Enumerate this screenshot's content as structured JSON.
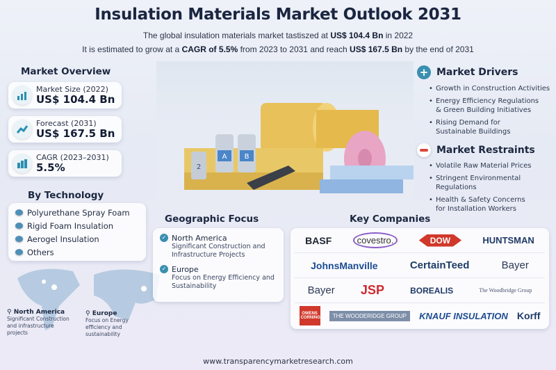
{
  "header": {
    "title": "Insulation Materials Market Outlook 2031",
    "line1_pre": "The global insulation materials market tastiszed at ",
    "line1_bold": "US$ 104.4 Bn",
    "line1_post": " in 2022",
    "line2_pre": "It is estimated to grow at a ",
    "line2_bold1": "CAGR of 5.5%",
    "line2_mid": " from 2023 to 2031 and reach ",
    "line2_bold2": "US$ 167.5 Bn",
    "line2_post": " by the end of 2031"
  },
  "overview": {
    "heading": "Market Overview",
    "cards": [
      {
        "label": "Market Size (2022)",
        "value": "US$ 104.4 Bn",
        "icon": "bar-chart-up-icon"
      },
      {
        "label": "Forecast (2031)",
        "value": "US$ 167.5 Bn",
        "icon": "forecast-icon"
      },
      {
        "label": "CAGR (2023–2031)",
        "value": "5.5%",
        "icon": "growth-chart-icon"
      }
    ]
  },
  "technology": {
    "heading": "By Technology",
    "items": [
      "Polyurethane Spray Foam",
      "Rigid Foam Insulation",
      "Aerogel Insulation",
      "Others"
    ]
  },
  "map": {
    "labels": [
      {
        "region": "North America",
        "desc": "Significant Construction and infrastructure projects"
      },
      {
        "region": "Europe",
        "desc": "Focus on Energy efficiency and sustainability"
      }
    ]
  },
  "drivers": {
    "heading": "Market Drivers",
    "items": [
      "Growth in Construction Activities",
      "Energy Efficiency Regulations & Green Building Initiatives",
      "Rising Demand for Sustainable Buildings"
    ]
  },
  "restraints": {
    "heading": "Market Restraints",
    "items": [
      "Volatile Raw Material Prices",
      "Stringent Environmental Regulations",
      "Health & Safety Concerns for Installation Workers"
    ]
  },
  "geo": {
    "heading": "Geographic Focus",
    "items": [
      {
        "region": "North America",
        "desc": "Significant Construction and Infrastructure Projects"
      },
      {
        "region": "Europe",
        "desc": "Focus on Energy Efficiency and Sustainability"
      }
    ]
  },
  "companies": {
    "heading": "Key Companies",
    "rows": [
      [
        "BASF",
        "covestro.",
        "DOW",
        "HUNTSMAN"
      ],
      [
        "JohnsManville",
        "CertainTeed",
        "Bayer"
      ],
      [
        "Bayer",
        "JSP",
        "BOREALIS",
        "The Woodbridge Group"
      ],
      [
        "OWENS CORNING",
        "THE WOODERIDGE GROUP",
        "KNAUF INSULATION",
        "Korff"
      ]
    ]
  },
  "hero": {
    "can_a": "A",
    "can_b": "B",
    "can_2": "2"
  },
  "footer": {
    "url": "www.transparencymarketresearch.com"
  }
}
